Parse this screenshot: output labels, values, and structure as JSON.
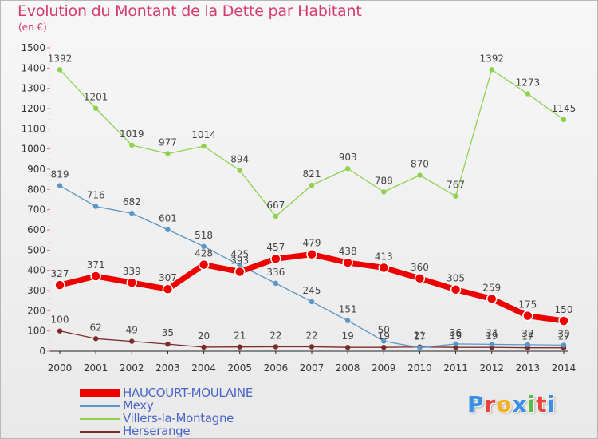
{
  "header": {
    "title": "Evolution du Montant de la Dette par Habitant",
    "subtitle": "(en €)"
  },
  "logo": {
    "text": "Proxiti",
    "letter_colors": [
      "#3a8ee6",
      "#e8453c",
      "#f2b01e",
      "#3a8ee6",
      "#58b947",
      "#e8453c",
      "#3a8ee6"
    ]
  },
  "chart_data": {
    "type": "line",
    "title": "Evolution du Montant de la Dette par Habitant",
    "subtitle": "(en €)",
    "xlabel": "",
    "ylabel": "",
    "x": [
      "2000",
      "2001",
      "2002",
      "2003",
      "2004",
      "2005",
      "2006",
      "2007",
      "2008",
      "2009",
      "2010",
      "2011",
      "2012",
      "2013",
      "2014"
    ],
    "ylim": [
      0,
      1500
    ],
    "y_ticks": [
      0,
      100,
      200,
      300,
      400,
      500,
      600,
      700,
      800,
      900,
      1000,
      1100,
      1200,
      1300,
      1400,
      1500
    ],
    "grid": false,
    "legend_position": "bottom-left",
    "series": [
      {
        "name": "HAUCOURT-MOULAINE",
        "color": "#ee0000",
        "values": [
          327,
          371,
          339,
          307,
          428,
          393,
          457,
          479,
          438,
          413,
          360,
          305,
          259,
          175,
          150
        ],
        "labels": [
          "327",
          "371",
          "339",
          "307",
          "428",
          "393",
          "457",
          "479",
          "438",
          "413",
          "360",
          "305",
          "259",
          "175",
          "150"
        ]
      },
      {
        "name": "Mexy",
        "color": "#5a96c8",
        "values": [
          819,
          716,
          682,
          601,
          518,
          425,
          336,
          245,
          151,
          50,
          17,
          36,
          34,
          32,
          30
        ],
        "labels": [
          "819",
          "716",
          "682",
          "601",
          "518",
          "425",
          "336",
          "245",
          "151",
          "50",
          "17",
          "36",
          "34",
          "32",
          "30"
        ]
      },
      {
        "name": "Villers-la-Montagne",
        "color": "#8fd14f",
        "values": [
          1392,
          1201,
          1019,
          977,
          1014,
          894,
          667,
          821,
          903,
          788,
          870,
          767,
          1392,
          1273,
          1145
        ],
        "labels": [
          "1392",
          "1201",
          "1019",
          "977",
          "1014",
          "894",
          "667",
          "821",
          "903",
          "788",
          "870",
          "767",
          "1392",
          "1273",
          "1145"
        ]
      },
      {
        "name": "Herserange",
        "color": "#7a2b2b",
        "values": [
          100,
          62,
          49,
          35,
          20,
          21,
          22,
          22,
          19,
          19,
          21,
          19,
          19,
          17,
          17
        ],
        "labels": [
          "100",
          "62",
          "49",
          "35",
          "20",
          "21",
          "22",
          "22",
          "19",
          "19",
          "21",
          "19",
          "19",
          "17",
          "17"
        ]
      }
    ]
  }
}
